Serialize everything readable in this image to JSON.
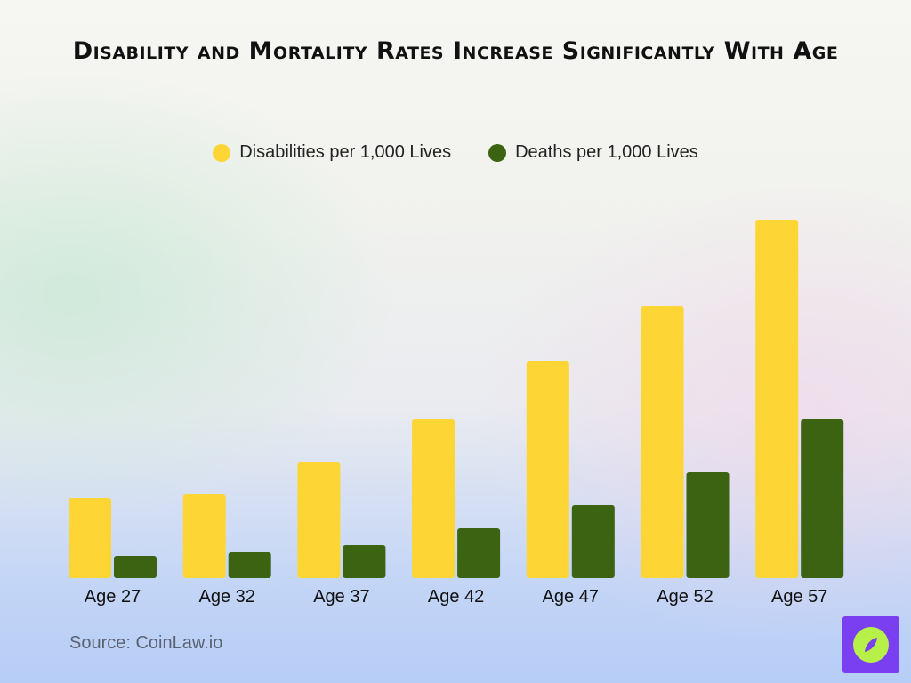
{
  "chart_data": {
    "type": "bar",
    "title": "Disability and Mortality Rates Increase Significantly With Age",
    "categories": [
      "Age 27",
      "Age 32",
      "Age 37",
      "Age 42",
      "Age 47",
      "Age 52",
      "Age 57"
    ],
    "series": [
      {
        "name": "Disabilities per 1,000 Lives",
        "color": "#fdd535",
        "values": [
          9.0,
          9.4,
          13.0,
          17.9,
          24.4,
          30.6,
          40.3
        ]
      },
      {
        "name": "Deaths per 1,000 Lives",
        "color": "#3b6312",
        "values": [
          2.5,
          2.9,
          3.7,
          5.6,
          8.2,
          11.9,
          17.9
        ]
      }
    ],
    "ylim": [
      0,
      45
    ],
    "legend": "top-center",
    "grid": false
  },
  "source": "Source: CoinLaw.io",
  "logo": {
    "icon": "compass-icon",
    "background": "#7b3ff2",
    "accent": "#b8f04a"
  }
}
